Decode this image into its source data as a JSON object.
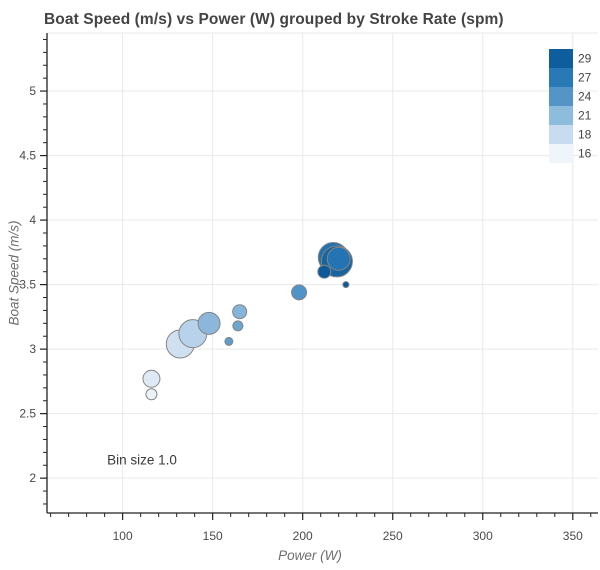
{
  "title": "Boat Speed (m/s) vs Power (W) grouped by Stroke Rate (spm)",
  "annotation": {
    "text": "Bin size 1.0",
    "power": 111,
    "speed": 2.13
  },
  "legend": {
    "entries": [
      {
        "label": "29",
        "color": "#0e5d9d"
      },
      {
        "label": "27",
        "color": "#2979b7"
      },
      {
        "label": "24",
        "color": "#5495c5"
      },
      {
        "label": "21",
        "color": "#8ebcdd"
      },
      {
        "label": "18",
        "color": "#c7dcef"
      },
      {
        "label": "16",
        "color": "#eff5fb"
      }
    ]
  },
  "chart_data": {
    "type": "scatter",
    "title": "Boat Speed (m/s) vs Power (W) grouped by Stroke Rate (spm)",
    "xlabel": "Power (W)",
    "ylabel": "Boat Speed (m/s)",
    "x_axis": {
      "range": [
        58,
        364
      ],
      "major_ticks": [
        100,
        150,
        200,
        250,
        300,
        350
      ],
      "tick_labels": [
        "100",
        "150",
        "200",
        "250",
        "300",
        "350"
      ],
      "minor_tick_step": 10
    },
    "y_axis": {
      "range": [
        1.73,
        5.45
      ],
      "major_ticks": [
        2,
        2.5,
        3,
        3.5,
        4,
        4.5,
        5
      ],
      "tick_labels": [
        "2",
        "2.5",
        "3",
        "3.5",
        "4",
        "4.5",
        "5"
      ],
      "minor_tick_step": 0.1
    },
    "grid": true,
    "legend_position": "top-right",
    "points": [
      {
        "power": 132,
        "speed": 3.04,
        "stroke_rate": 18,
        "radius_px": 14,
        "color": "#cfe0f1"
      },
      {
        "power": 139,
        "speed": 3.12,
        "stroke_rate": 19,
        "radius_px": 14,
        "color": "#b7d3eb"
      },
      {
        "power": 148,
        "speed": 3.2,
        "stroke_rate": 21,
        "radius_px": 11,
        "color": "#8cb7db"
      },
      {
        "power": 116,
        "speed": 2.77,
        "stroke_rate": 17,
        "radius_px": 8.5,
        "color": "#dde9f5"
      },
      {
        "power": 116,
        "speed": 2.65,
        "stroke_rate": 16,
        "radius_px": 5.5,
        "color": "#eaf2fa"
      },
      {
        "power": 159,
        "speed": 3.06,
        "stroke_rate": 23,
        "radius_px": 4,
        "color": "#5e9cc9"
      },
      {
        "power": 164,
        "speed": 3.18,
        "stroke_rate": 22,
        "radius_px": 5,
        "color": "#6ba6d0"
      },
      {
        "power": 165,
        "speed": 3.29,
        "stroke_rate": 21,
        "radius_px": 7,
        "color": "#85b5da"
      },
      {
        "power": 198,
        "speed": 3.44,
        "stroke_rate": 24,
        "radius_px": 7.5,
        "color": "#4e94c6"
      },
      {
        "power": 217,
        "speed": 3.71,
        "stroke_rate": 27,
        "radius_px": 15,
        "color": "#2171b1"
      },
      {
        "power": 219,
        "speed": 3.68,
        "stroke_rate": 28,
        "radius_px": 15.5,
        "color": "#17649f"
      },
      {
        "power": 220,
        "speed": 3.7,
        "stroke_rate": 27,
        "radius_px": 11.5,
        "color": "#2474b4"
      },
      {
        "power": 212,
        "speed": 3.6,
        "stroke_rate": 29,
        "radius_px": 6.5,
        "color": "#0d5a9b"
      },
      {
        "power": 224,
        "speed": 3.5,
        "stroke_rate": 29,
        "radius_px": 3,
        "color": "#0d5a9b"
      }
    ]
  }
}
